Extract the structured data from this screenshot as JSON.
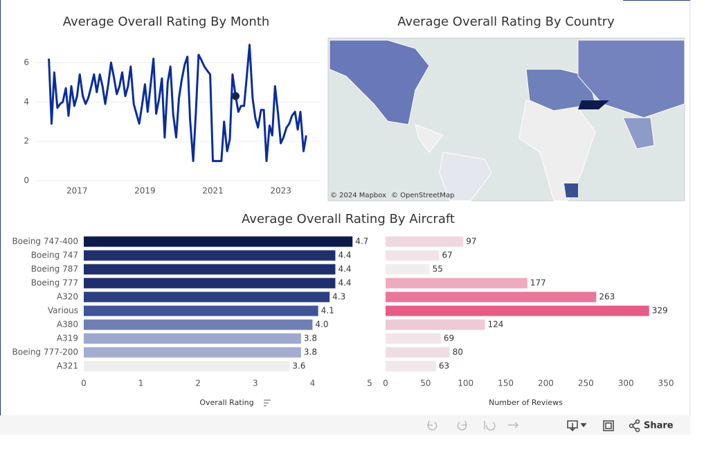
{
  "chart_data": [
    {
      "type": "line",
      "title": "Average Overall Rating By Month",
      "x": [
        2016.17,
        2016.25,
        2016.33,
        2016.42,
        2016.5,
        2016.58,
        2016.67,
        2016.75,
        2016.83,
        2016.92,
        2017.0,
        2017.08,
        2017.17,
        2017.25,
        2017.33,
        2017.42,
        2017.5,
        2017.58,
        2017.67,
        2017.75,
        2017.83,
        2017.92,
        2018.0,
        2018.08,
        2018.17,
        2018.25,
        2018.33,
        2018.42,
        2018.5,
        2018.58,
        2018.67,
        2018.75,
        2018.83,
        2018.92,
        2019.0,
        2019.08,
        2019.17,
        2019.25,
        2019.33,
        2019.42,
        2019.5,
        2019.58,
        2019.67,
        2019.75,
        2019.83,
        2019.92,
        2020.0,
        2020.08,
        2020.17,
        2020.25,
        2020.33,
        2020.42,
        2020.5,
        2020.58,
        2020.67,
        2020.75,
        2020.83,
        2020.92,
        2021.0,
        2021.08,
        2021.17,
        2021.25,
        2021.33,
        2021.42,
        2021.5,
        2021.58,
        2021.67,
        2021.75,
        2021.83,
        2021.92,
        2022.0,
        2022.08,
        2022.17,
        2022.25,
        2022.33,
        2022.42,
        2022.5,
        2022.58,
        2022.67,
        2022.75,
        2022.83,
        2022.92,
        2023.0,
        2023.08,
        2023.17,
        2023.25,
        2023.33,
        2023.42,
        2023.5,
        2023.58,
        2023.67,
        2023.75
      ],
      "values": [
        6.2,
        2.9,
        5.5,
        3.7,
        3.9,
        4.0,
        4.7,
        3.3,
        4.8,
        3.8,
        4.3,
        5.4,
        4.3,
        3.9,
        4.2,
        4.8,
        5.4,
        4.5,
        5.4,
        4.8,
        3.9,
        4.9,
        6.0,
        5.3,
        4.4,
        4.8,
        5.5,
        4.3,
        4.8,
        5.8,
        3.9,
        3.4,
        2.9,
        3.9,
        4.9,
        3.5,
        4.9,
        6.2,
        3.4,
        4.2,
        5.2,
        2.2,
        5.0,
        5.8,
        3.4,
        2.2,
        4.2,
        5.1,
        5.9,
        6.3,
        3.1,
        1.0,
        3.5,
        6.4,
        6.1,
        5.8,
        5.6,
        5.4,
        1.0,
        1.0,
        1.0,
        1.0,
        3.0,
        1.5,
        2.1,
        5.4,
        4.3,
        3.5,
        3.8,
        3.8,
        5.3,
        6.9,
        4.2,
        3.2,
        2.7,
        3.6,
        3.6,
        1.0,
        2.8,
        2.3,
        4.8,
        3.4,
        1.9,
        2.2,
        2.7,
        2.9,
        3.3,
        3.5,
        2.6,
        3.5,
        1.5,
        2.3
      ],
      "color": "#0a2d9c",
      "xlim": [
        2015.75,
        2024.15
      ],
      "xticks": [
        2017,
        2019,
        2021,
        2023
      ],
      "ylim": [
        0,
        7
      ],
      "yticks": [
        0,
        2,
        4,
        6
      ],
      "grid": true
    },
    {
      "type": "bar",
      "title": "Average Overall Rating By Aircraft",
      "xlabel": "Overall Rating",
      "categories": [
        "Boeing 747-400",
        "Boeing 747",
        "Boeing 787",
        "Boeing 777",
        "A320",
        "Various",
        "A380",
        "A319",
        "Boeing 777-200",
        "A321"
      ],
      "values": [
        4.7,
        4.4,
        4.4,
        4.4,
        4.3,
        4.1,
        4.0,
        3.8,
        3.8,
        3.6
      ],
      "value_labels": [
        "4.7",
        "4.4",
        "4.4",
        "4.4",
        "4.3",
        "4.1",
        "4.0",
        "3.8",
        "3.8",
        "3.6"
      ],
      "colors": [
        "#0d1b4c",
        "#1f2f6e",
        "#1f2f6e",
        "#1f2f6e",
        "#2c3f80",
        "#3f5598",
        "#6f7fb3",
        "#9da8cc",
        "#a4add0",
        "#eeeeee"
      ],
      "xlim": [
        0,
        5
      ],
      "xticks": [
        0,
        1,
        2,
        3,
        4,
        5
      ]
    },
    {
      "type": "bar",
      "xlabel": "Number of Reviews",
      "values": [
        97,
        67,
        55,
        177,
        263,
        329,
        124,
        69,
        80,
        63
      ],
      "colors": [
        "#f0d8e0",
        "#f1e4e8",
        "#f0eeee",
        "#eeaabf",
        "#e8779a",
        "#e65c86",
        "#eec9d6",
        "#f1e5e9",
        "#f0dde4",
        "#f0e8eb"
      ],
      "xlim": [
        0,
        350
      ],
      "xticks": [
        0,
        50,
        100,
        150,
        200,
        250,
        300,
        350
      ]
    }
  ],
  "map": {
    "title": "Average Overall Rating By Country",
    "attribution": [
      "© 2024 Mapbox",
      "© OpenStreetMap"
    ]
  },
  "toolbar": {
    "share": "Share"
  }
}
